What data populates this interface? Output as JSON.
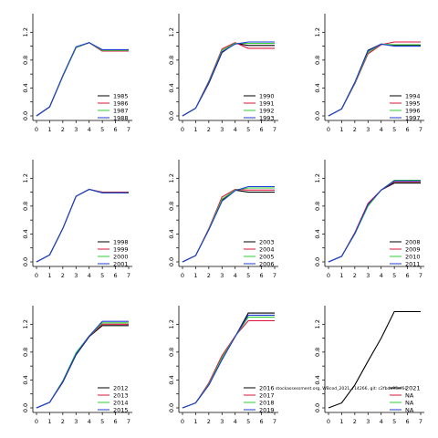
{
  "colors": {
    "black": "#000000",
    "red": "#dc143c",
    "green": "#32cd32",
    "blue": "#1e3cd8"
  },
  "footnote": "stockassessment.org, WBcod_2021, r14266, git: c2fbda95ef6c",
  "chart_data": [
    {
      "type": "line",
      "x": [
        0,
        1,
        2,
        3,
        4,
        5,
        6,
        7
      ],
      "xticks": [
        "0",
        "1",
        "2",
        "3",
        "4",
        "5",
        "6",
        "7"
      ],
      "yticks": [
        "0.0",
        "0.4",
        "0.8",
        "1.2"
      ],
      "ylim": [
        0,
        1.4
      ],
      "xlim": [
        0,
        7
      ],
      "series": [
        {
          "name": "1985",
          "color": "black",
          "values": [
            0,
            0.13,
            0.57,
            0.98,
            1.05,
            0.93,
            0.93,
            0.93
          ]
        },
        {
          "name": "1986",
          "color": "red",
          "values": [
            0,
            0.13,
            0.57,
            0.98,
            1.05,
            0.93,
            0.93,
            0.93
          ]
        },
        {
          "name": "1987",
          "color": "green",
          "values": [
            0,
            0.13,
            0.57,
            0.98,
            1.05,
            0.94,
            0.94,
            0.94
          ]
        },
        {
          "name": "1988",
          "color": "blue",
          "values": [
            0,
            0.13,
            0.58,
            0.99,
            1.05,
            0.95,
            0.95,
            0.95
          ]
        }
      ]
    },
    {
      "type": "line",
      "x": [
        0,
        1,
        2,
        3,
        4,
        5,
        6,
        7
      ],
      "xticks": [
        "0",
        "1",
        "2",
        "3",
        "4",
        "5",
        "6",
        "7"
      ],
      "yticks": [
        "0.0",
        "0.4",
        "0.8",
        "1.2"
      ],
      "ylim": [
        0,
        1.4
      ],
      "xlim": [
        0,
        7
      ],
      "series": [
        {
          "name": "1990",
          "color": "black",
          "values": [
            0,
            0.11,
            0.47,
            0.91,
            1.04,
            1.01,
            1.01,
            1.01
          ]
        },
        {
          "name": "1991",
          "color": "red",
          "values": [
            0,
            0.11,
            0.5,
            0.96,
            1.05,
            0.97,
            0.97,
            0.97
          ]
        },
        {
          "name": "1992",
          "color": "green",
          "values": [
            0,
            0.11,
            0.49,
            0.94,
            1.04,
            1.04,
            1.04,
            1.04
          ]
        },
        {
          "name": "1993",
          "color": "blue",
          "values": [
            0,
            0.11,
            0.48,
            0.92,
            1.03,
            1.06,
            1.06,
            1.06
          ]
        }
      ]
    },
    {
      "type": "line",
      "x": [
        0,
        1,
        2,
        3,
        4,
        5,
        6,
        7
      ],
      "xticks": [
        "0",
        "1",
        "2",
        "3",
        "4",
        "5",
        "6",
        "7"
      ],
      "yticks": [
        "0.0",
        "0.4",
        "0.8",
        "1.2"
      ],
      "ylim": [
        0,
        1.4
      ],
      "xlim": [
        0,
        7
      ],
      "series": [
        {
          "name": "1994",
          "color": "black",
          "values": [
            0,
            0.1,
            0.48,
            0.94,
            1.03,
            1.01,
            1.01,
            1.01
          ]
        },
        {
          "name": "1995",
          "color": "red",
          "values": [
            0,
            0.1,
            0.46,
            0.89,
            1.02,
            1.06,
            1.06,
            1.06
          ]
        },
        {
          "name": "1996",
          "color": "green",
          "values": [
            0,
            0.1,
            0.47,
            0.91,
            1.03,
            1.02,
            1.02,
            1.02
          ]
        },
        {
          "name": "1997",
          "color": "blue",
          "values": [
            0,
            0.1,
            0.48,
            0.93,
            1.03,
            1.0,
            1.0,
            1.0
          ]
        }
      ]
    },
    {
      "type": "line",
      "x": [
        0,
        1,
        2,
        3,
        4,
        5,
        6,
        7
      ],
      "xticks": [
        "0",
        "1",
        "2",
        "3",
        "4",
        "5",
        "6",
        "7"
      ],
      "yticks": [
        "0.0",
        "0.4",
        "0.8",
        "1.2"
      ],
      "ylim": [
        0,
        1.4
      ],
      "xlim": [
        0,
        7
      ],
      "series": [
        {
          "name": "1998",
          "color": "black",
          "values": [
            0,
            0.1,
            0.48,
            0.94,
            1.04,
            0.99,
            0.99,
            0.99
          ]
        },
        {
          "name": "1999",
          "color": "red",
          "values": [
            0,
            0.1,
            0.48,
            0.94,
            1.04,
            1.0,
            1.0,
            1.0
          ]
        },
        {
          "name": "2000",
          "color": "green",
          "values": [
            0,
            0.1,
            0.48,
            0.94,
            1.04,
            0.99,
            0.99,
            0.99
          ]
        },
        {
          "name": "2001",
          "color": "blue",
          "values": [
            0,
            0.1,
            0.48,
            0.94,
            1.04,
            0.99,
            0.99,
            0.99
          ]
        }
      ]
    },
    {
      "type": "line",
      "x": [
        0,
        1,
        2,
        3,
        4,
        5,
        6,
        7
      ],
      "xticks": [
        "0",
        "1",
        "2",
        "3",
        "4",
        "5",
        "6",
        "7"
      ],
      "yticks": [
        "0.0",
        "0.4",
        "0.8",
        "1.2"
      ],
      "ylim": [
        0,
        1.4
      ],
      "xlim": [
        0,
        7
      ],
      "series": [
        {
          "name": "2003",
          "color": "black",
          "values": [
            0,
            0.09,
            0.47,
            0.89,
            1.03,
            1.0,
            1.0,
            1.0
          ]
        },
        {
          "name": "2004",
          "color": "red",
          "values": [
            0,
            0.09,
            0.48,
            0.93,
            1.04,
            1.03,
            1.03,
            1.03
          ]
        },
        {
          "name": "2005",
          "color": "green",
          "values": [
            0,
            0.09,
            0.47,
            0.9,
            1.03,
            1.06,
            1.06,
            1.06
          ]
        },
        {
          "name": "2006",
          "color": "blue",
          "values": [
            0,
            0.09,
            0.46,
            0.87,
            1.02,
            1.08,
            1.08,
            1.08
          ]
        }
      ]
    },
    {
      "type": "line",
      "x": [
        0,
        1,
        2,
        3,
        4,
        5,
        6,
        7
      ],
      "xticks": [
        "0",
        "1",
        "2",
        "3",
        "4",
        "5",
        "6",
        "7"
      ],
      "yticks": [
        "0.0",
        "0.4",
        "0.8",
        "1.2"
      ],
      "ylim": [
        0,
        1.4
      ],
      "xlim": [
        0,
        7
      ],
      "series": [
        {
          "name": "2008",
          "color": "black",
          "values": [
            0,
            0.08,
            0.41,
            0.81,
            1.03,
            1.13,
            1.13,
            1.13
          ]
        },
        {
          "name": "2009",
          "color": "red",
          "values": [
            0,
            0.08,
            0.42,
            0.84,
            1.03,
            1.15,
            1.15,
            1.15
          ]
        },
        {
          "name": "2010",
          "color": "green",
          "values": [
            0,
            0.08,
            0.4,
            0.8,
            1.03,
            1.17,
            1.17,
            1.17
          ]
        },
        {
          "name": "2011",
          "color": "blue",
          "values": [
            0,
            0.08,
            0.41,
            0.82,
            1.03,
            1.16,
            1.16,
            1.16
          ]
        }
      ]
    },
    {
      "type": "line",
      "x": [
        0,
        1,
        2,
        3,
        4,
        5,
        6,
        7
      ],
      "xticks": [
        "0",
        "1",
        "2",
        "3",
        "4",
        "5",
        "6",
        "7"
      ],
      "yticks": [
        "0.0",
        "0.4",
        "0.8",
        "1.2"
      ],
      "ylim": [
        0,
        1.4
      ],
      "xlim": [
        0,
        7
      ],
      "series": [
        {
          "name": "2012",
          "color": "black",
          "values": [
            0,
            0.08,
            0.37,
            0.76,
            1.02,
            1.18,
            1.18,
            1.18
          ]
        },
        {
          "name": "2013",
          "color": "red",
          "values": [
            0,
            0.08,
            0.38,
            0.78,
            1.03,
            1.2,
            1.2,
            1.2
          ]
        },
        {
          "name": "2014",
          "color": "green",
          "values": [
            0,
            0.08,
            0.39,
            0.79,
            1.03,
            1.22,
            1.22,
            1.22
          ]
        },
        {
          "name": "2015",
          "color": "blue",
          "values": [
            0,
            0.08,
            0.38,
            0.77,
            1.03,
            1.24,
            1.24,
            1.24
          ]
        }
      ]
    },
    {
      "type": "line",
      "x": [
        0,
        1,
        2,
        3,
        4,
        5,
        6,
        7
      ],
      "xticks": [
        "0",
        "1",
        "2",
        "3",
        "4",
        "5",
        "6",
        "7"
      ],
      "yticks": [
        "0.0",
        "0.4",
        "0.8",
        "1.2"
      ],
      "ylim": [
        0,
        1.4
      ],
      "xlim": [
        0,
        7
      ],
      "series": [
        {
          "name": "2016",
          "color": "black",
          "values": [
            0,
            0.07,
            0.33,
            0.7,
            1.02,
            1.36,
            1.36,
            1.36
          ]
        },
        {
          "name": "2017",
          "color": "red",
          "values": [
            0,
            0.07,
            0.36,
            0.75,
            1.03,
            1.25,
            1.25,
            1.25
          ]
        },
        {
          "name": "2018",
          "color": "green",
          "values": [
            0,
            0.07,
            0.34,
            0.72,
            1.02,
            1.3,
            1.3,
            1.3
          ]
        },
        {
          "name": "2019",
          "color": "blue",
          "values": [
            0,
            0.07,
            0.33,
            0.69,
            1.02,
            1.33,
            1.33,
            1.33
          ]
        }
      ]
    },
    {
      "type": "line",
      "x": [
        0,
        1,
        2,
        3,
        4,
        5,
        6,
        7
      ],
      "xticks": [
        "0",
        "1",
        "2",
        "3",
        "4",
        "5",
        "6",
        "7"
      ],
      "yticks": [
        "0.0",
        "0.4",
        "0.8",
        "1.2"
      ],
      "ylim": [
        0,
        1.4
      ],
      "xlim": [
        0,
        7
      ],
      "series": [
        {
          "name": "2021",
          "color": "black",
          "values": [
            0,
            0.07,
            0.33,
            0.67,
            1.0,
            1.38,
            1.38,
            1.38
          ]
        },
        {
          "name": "NA",
          "color": "red",
          "values": null
        },
        {
          "name": "NA",
          "color": "green",
          "values": null
        },
        {
          "name": "NA",
          "color": "blue",
          "values": null
        }
      ]
    }
  ]
}
